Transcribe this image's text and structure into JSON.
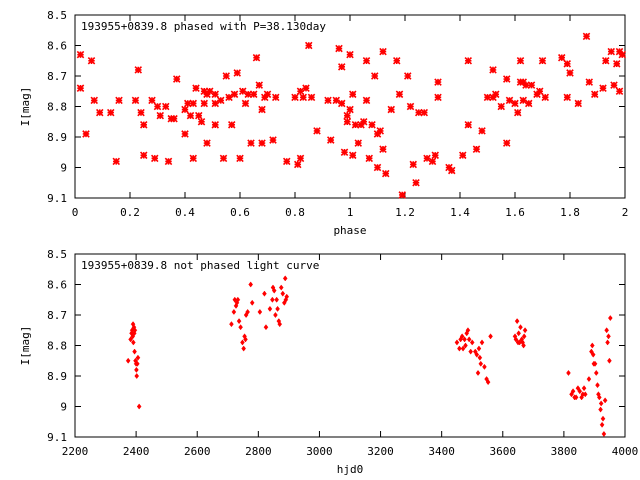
{
  "chart_data": [
    {
      "type": "scatter",
      "title": "193955+0839.8 phased with P=38.130day",
      "xlabel": "phase",
      "ylabel": "I[mag]",
      "xlim": [
        0,
        2
      ],
      "ylim": [
        8.5,
        9.1
      ],
      "y_inverted": true,
      "x_ticks": [
        "0",
        "0.2",
        "0.4",
        "0.6",
        "0.8",
        "1",
        "1.2",
        "1.4",
        "1.6",
        "1.8",
        "2"
      ],
      "y_ticks": [
        "8.5",
        "8.6",
        "8.7",
        "8.8",
        "8.9",
        "9",
        "9.1"
      ],
      "grid": false,
      "marker": "star",
      "color": "#ff0000",
      "points": [
        [
          0.02,
          8.63
        ],
        [
          0.02,
          8.74
        ],
        [
          0.04,
          8.89
        ],
        [
          0.06,
          8.65
        ],
        [
          0.07,
          8.78
        ],
        [
          0.09,
          8.82
        ],
        [
          0.13,
          8.82
        ],
        [
          0.15,
          8.98
        ],
        [
          0.16,
          8.78
        ],
        [
          0.22,
          8.78
        ],
        [
          0.23,
          8.68
        ],
        [
          0.24,
          8.82
        ],
        [
          0.25,
          8.86
        ],
        [
          0.25,
          8.96
        ],
        [
          0.28,
          8.78
        ],
        [
          0.29,
          8.97
        ],
        [
          0.3,
          8.8
        ],
        [
          0.31,
          8.83
        ],
        [
          0.33,
          8.8
        ],
        [
          0.34,
          8.98
        ],
        [
          0.35,
          8.84
        ],
        [
          0.36,
          8.84
        ],
        [
          0.37,
          8.71
        ],
        [
          0.4,
          8.81
        ],
        [
          0.4,
          8.89
        ],
        [
          0.41,
          8.79
        ],
        [
          0.42,
          8.83
        ],
        [
          0.43,
          8.79
        ],
        [
          0.43,
          8.97
        ],
        [
          0.44,
          8.74
        ],
        [
          0.45,
          8.83
        ],
        [
          0.46,
          8.85
        ],
        [
          0.47,
          8.75
        ],
        [
          0.47,
          8.79
        ],
        [
          0.48,
          8.76
        ],
        [
          0.48,
          8.92
        ],
        [
          0.49,
          8.75
        ],
        [
          0.51,
          8.79
        ],
        [
          0.51,
          8.86
        ],
        [
          0.51,
          8.76
        ],
        [
          0.53,
          8.78
        ],
        [
          0.54,
          8.97
        ],
        [
          0.55,
          8.7
        ],
        [
          0.56,
          8.77
        ],
        [
          0.57,
          8.86
        ],
        [
          0.58,
          8.76
        ],
        [
          0.59,
          8.69
        ],
        [
          0.6,
          8.97
        ],
        [
          0.61,
          8.75
        ],
        [
          0.62,
          8.79
        ],
        [
          0.63,
          8.76
        ],
        [
          0.64,
          8.92
        ],
        [
          0.65,
          8.76
        ],
        [
          0.66,
          8.64
        ],
        [
          0.67,
          8.73
        ],
        [
          0.68,
          8.92
        ],
        [
          0.68,
          8.81
        ],
        [
          0.69,
          8.77
        ],
        [
          0.7,
          8.76
        ],
        [
          0.72,
          8.91
        ],
        [
          0.73,
          8.77
        ],
        [
          0.77,
          8.98
        ],
        [
          0.8,
          8.77
        ],
        [
          0.81,
          8.99
        ],
        [
          0.82,
          8.75
        ],
        [
          0.82,
          8.97
        ],
        [
          0.83,
          8.77
        ],
        [
          0.84,
          8.74
        ],
        [
          0.85,
          8.6
        ],
        [
          0.86,
          8.77
        ],
        [
          0.88,
          8.88
        ],
        [
          0.92,
          8.78
        ],
        [
          0.93,
          8.91
        ],
        [
          0.95,
          8.78
        ],
        [
          0.96,
          8.61
        ],
        [
          0.97,
          8.67
        ],
        [
          0.97,
          8.79
        ],
        [
          0.98,
          8.95
        ],
        [
          0.99,
          8.85
        ],
        [
          0.99,
          8.83
        ],
        [
          1.0,
          8.81
        ],
        [
          1.0,
          8.63
        ],
        [
          1.01,
          8.76
        ],
        [
          1.01,
          8.96
        ],
        [
          1.02,
          8.86
        ],
        [
          1.03,
          8.92
        ],
        [
          1.04,
          8.86
        ],
        [
          1.05,
          8.85
        ],
        [
          1.06,
          8.65
        ],
        [
          1.06,
          8.78
        ],
        [
          1.07,
          8.97
        ],
        [
          1.08,
          8.86
        ],
        [
          1.09,
          8.7
        ],
        [
          1.1,
          8.89
        ],
        [
          1.1,
          9.0
        ],
        [
          1.11,
          8.88
        ],
        [
          1.12,
          8.62
        ],
        [
          1.12,
          8.94
        ],
        [
          1.13,
          9.02
        ],
        [
          1.15,
          8.81
        ],
        [
          1.17,
          8.65
        ],
        [
          1.18,
          8.76
        ],
        [
          1.19,
          9.09
        ],
        [
          1.21,
          8.7
        ],
        [
          1.22,
          8.8
        ],
        [
          1.23,
          8.99
        ],
        [
          1.24,
          9.05
        ],
        [
          1.25,
          8.82
        ],
        [
          1.27,
          8.82
        ],
        [
          1.28,
          8.97
        ],
        [
          1.3,
          8.98
        ],
        [
          1.31,
          8.96
        ],
        [
          1.32,
          8.72
        ],
        [
          1.32,
          8.77
        ],
        [
          1.36,
          9.0
        ],
        [
          1.37,
          9.01
        ],
        [
          1.41,
          8.96
        ],
        [
          1.43,
          8.86
        ],
        [
          1.43,
          8.65
        ],
        [
          1.46,
          8.94
        ],
        [
          1.48,
          8.88
        ],
        [
          1.5,
          8.77
        ],
        [
          1.52,
          8.68
        ],
        [
          1.52,
          8.77
        ],
        [
          1.53,
          8.76
        ],
        [
          1.55,
          8.8
        ],
        [
          1.57,
          8.71
        ],
        [
          1.57,
          8.92
        ],
        [
          1.58,
          8.78
        ],
        [
          1.6,
          8.79
        ],
        [
          1.61,
          8.82
        ],
        [
          1.62,
          8.72
        ],
        [
          1.62,
          8.65
        ],
        [
          1.63,
          8.72
        ],
        [
          1.63,
          8.78
        ],
        [
          1.64,
          8.73
        ],
        [
          1.65,
          8.79
        ],
        [
          1.66,
          8.73
        ],
        [
          1.68,
          8.76
        ],
        [
          1.69,
          8.75
        ],
        [
          1.7,
          8.65
        ],
        [
          1.71,
          8.77
        ],
        [
          1.77,
          8.64
        ],
        [
          1.79,
          8.77
        ],
        [
          1.79,
          8.66
        ],
        [
          1.8,
          8.69
        ],
        [
          1.83,
          8.79
        ],
        [
          1.86,
          8.57
        ],
        [
          1.87,
          8.72
        ],
        [
          1.89,
          8.76
        ],
        [
          1.92,
          8.74
        ],
        [
          1.93,
          8.65
        ],
        [
          1.95,
          8.62
        ],
        [
          1.96,
          8.73
        ],
        [
          1.97,
          8.66
        ],
        [
          1.98,
          8.75
        ],
        [
          1.98,
          8.62
        ],
        [
          1.99,
          8.63
        ]
      ]
    },
    {
      "type": "scatter",
      "title": "193955+0839.8 not phased light curve",
      "xlabel": "hjd0",
      "ylabel": "I[mag]",
      "xlim": [
        2200,
        4000
      ],
      "ylim": [
        8.5,
        9.1
      ],
      "y_inverted": true,
      "x_ticks": [
        "2200",
        "2400",
        "2600",
        "2800",
        "3000",
        "3200",
        "3400",
        "3600",
        "3800",
        "4000"
      ],
      "y_ticks": [
        "8.5",
        "8.6",
        "8.7",
        "8.8",
        "8.9",
        "9",
        "9.1"
      ],
      "grid": false,
      "marker": "diamond",
      "color": "#ff0000",
      "points": [
        [
          2374,
          8.85
        ],
        [
          2382,
          8.78
        ],
        [
          2385,
          8.76
        ],
        [
          2387,
          8.75
        ],
        [
          2389,
          8.77
        ],
        [
          2390,
          8.73
        ],
        [
          2391,
          8.79
        ],
        [
          2393,
          8.74
        ],
        [
          2394,
          8.76
        ],
        [
          2395,
          8.82
        ],
        [
          2396,
          8.75
        ],
        [
          2398,
          8.85
        ],
        [
          2400,
          8.86
        ],
        [
          2401,
          8.88
        ],
        [
          2402,
          8.9
        ],
        [
          2404,
          8.86
        ],
        [
          2406,
          8.84
        ],
        [
          2410,
          9.0
        ],
        [
          2712,
          8.73
        ],
        [
          2720,
          8.69
        ],
        [
          2723,
          8.65
        ],
        [
          2727,
          8.67
        ],
        [
          2730,
          8.66
        ],
        [
          2733,
          8.65
        ],
        [
          2737,
          8.72
        ],
        [
          2742,
          8.74
        ],
        [
          2748,
          8.79
        ],
        [
          2752,
          8.81
        ],
        [
          2755,
          8.77
        ],
        [
          2758,
          8.78
        ],
        [
          2760,
          8.7
        ],
        [
          2765,
          8.69
        ],
        [
          2775,
          8.6
        ],
        [
          2780,
          8.66
        ],
        [
          2805,
          8.69
        ],
        [
          2820,
          8.63
        ],
        [
          2825,
          8.74
        ],
        [
          2838,
          8.68
        ],
        [
          2846,
          8.65
        ],
        [
          2848,
          8.61
        ],
        [
          2852,
          8.62
        ],
        [
          2856,
          8.7
        ],
        [
          2860,
          8.65
        ],
        [
          2863,
          8.68
        ],
        [
          2867,
          8.72
        ],
        [
          2870,
          8.73
        ],
        [
          2875,
          8.61
        ],
        [
          2880,
          8.63
        ],
        [
          2885,
          8.66
        ],
        [
          2888,
          8.58
        ],
        [
          2890,
          8.65
        ],
        [
          2893,
          8.64
        ],
        [
          3450,
          8.79
        ],
        [
          3458,
          8.81
        ],
        [
          3462,
          8.78
        ],
        [
          3467,
          8.77
        ],
        [
          3470,
          8.81
        ],
        [
          3475,
          8.78
        ],
        [
          3478,
          8.8
        ],
        [
          3482,
          8.76
        ],
        [
          3486,
          8.75
        ],
        [
          3490,
          8.78
        ],
        [
          3495,
          8.82
        ],
        [
          3500,
          8.79
        ],
        [
          3510,
          8.82
        ],
        [
          3515,
          8.83
        ],
        [
          3519,
          8.89
        ],
        [
          3522,
          8.81
        ],
        [
          3525,
          8.84
        ],
        [
          3528,
          8.86
        ],
        [
          3532,
          8.79
        ],
        [
          3540,
          8.87
        ],
        [
          3547,
          8.91
        ],
        [
          3552,
          8.92
        ],
        [
          3560,
          8.77
        ],
        [
          3640,
          8.77
        ],
        [
          3643,
          8.78
        ],
        [
          3647,
          8.72
        ],
        [
          3650,
          8.79
        ],
        [
          3652,
          8.76
        ],
        [
          3655,
          8.79
        ],
        [
          3658,
          8.74
        ],
        [
          3662,
          8.78
        ],
        [
          3665,
          8.79
        ],
        [
          3668,
          8.8
        ],
        [
          3670,
          8.77
        ],
        [
          3673,
          8.75
        ],
        [
          3815,
          8.89
        ],
        [
          3825,
          8.96
        ],
        [
          3830,
          8.95
        ],
        [
          3835,
          8.97
        ],
        [
          3840,
          8.97
        ],
        [
          3846,
          8.94
        ],
        [
          3852,
          8.95
        ],
        [
          3858,
          8.97
        ],
        [
          3862,
          8.96
        ],
        [
          3866,
          8.94
        ],
        [
          3870,
          8.96
        ],
        [
          3882,
          8.91
        ],
        [
          3890,
          8.82
        ],
        [
          3893,
          8.8
        ],
        [
          3896,
          8.83
        ],
        [
          3898,
          8.86
        ],
        [
          3902,
          8.86
        ],
        [
          3906,
          8.89
        ],
        [
          3910,
          8.93
        ],
        [
          3913,
          8.96
        ],
        [
          3916,
          8.97
        ],
        [
          3920,
          9.01
        ],
        [
          3922,
          8.99
        ],
        [
          3925,
          9.06
        ],
        [
          3928,
          9.04
        ],
        [
          3931,
          9.09
        ],
        [
          3935,
          8.98
        ],
        [
          3940,
          8.75
        ],
        [
          3943,
          8.79
        ],
        [
          3946,
          8.77
        ],
        [
          3949,
          8.85
        ],
        [
          3952,
          8.71
        ]
      ]
    }
  ]
}
